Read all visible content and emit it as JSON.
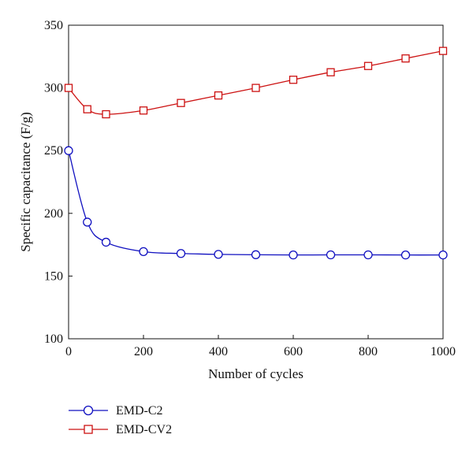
{
  "chart_data": {
    "type": "line",
    "xlabel": "Number of cycles",
    "ylabel": "Specific capacitance (F/g)",
    "xlim": [
      0,
      1000
    ],
    "ylim": [
      100,
      350
    ],
    "xticks": [
      0,
      200,
      400,
      600,
      800,
      1000
    ],
    "yticks": [
      100,
      150,
      200,
      250,
      300,
      350
    ],
    "grid": false,
    "legend_position": "bottom-left",
    "series": [
      {
        "name": "EMD-C2",
        "color": "#1010c0",
        "marker": "circle",
        "x": [
          0,
          50,
          100,
          200,
          300,
          400,
          500,
          600,
          700,
          800,
          900,
          1000
        ],
        "y": [
          250,
          193,
          177,
          169.5,
          168,
          167.3,
          167,
          166.8,
          166.9,
          166.9,
          166.8,
          166.8
        ]
      },
      {
        "name": "EMD-CV2",
        "color": "#cc1111",
        "marker": "square",
        "x": [
          0,
          50,
          100,
          200,
          300,
          400,
          500,
          600,
          700,
          800,
          900,
          1000
        ],
        "y": [
          300,
          283,
          279,
          282,
          288,
          294,
          300,
          306.5,
          312.5,
          317.5,
          323.5,
          329.5
        ]
      }
    ]
  }
}
